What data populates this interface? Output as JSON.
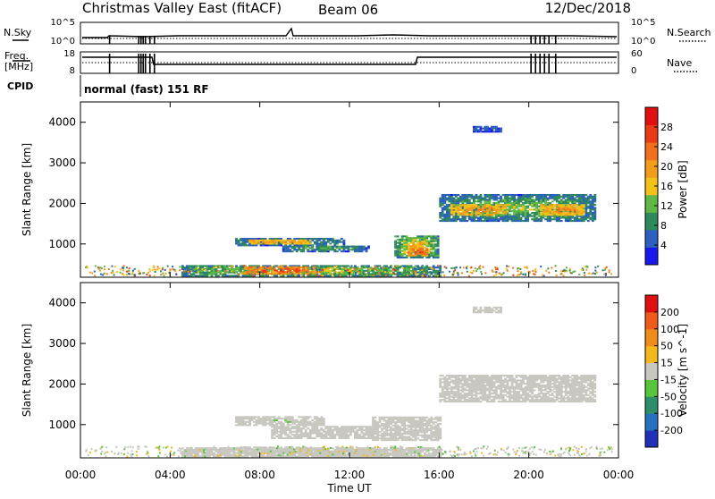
{
  "header": {
    "station": "Christmas Valley East (fitACF)",
    "beam": "Beam 06",
    "date": "12/Dec/2018"
  },
  "status_panels": {
    "nsky_label": "N.Sky",
    "nsearch_label": "N.Search",
    "freq_label_line1": "Freq.",
    "freq_label_line2": "[MHz]",
    "nave_label": "Nave",
    "cpid_label": "CPID",
    "cpid_value": "normal (fast) 151 RF",
    "noise_ticks": [
      "10^5",
      "10^0"
    ],
    "noise_ticks_right": [
      "10^5",
      "10^0"
    ],
    "freq_ticks": [
      "18",
      "8"
    ],
    "nave_ticks": [
      "60",
      "0"
    ]
  },
  "axes": {
    "ylabel": "Slant Range [km]",
    "xlabel": "Time UT",
    "y_ticks": [
      "1000",
      "2000",
      "3000",
      "4000"
    ],
    "x_ticks": [
      "00:00",
      "04:00",
      "08:00",
      "12:00",
      "16:00",
      "20:00",
      "00:00"
    ]
  },
  "colorbars": {
    "power": {
      "label": "Power [dB]",
      "ticks": [
        "4",
        "8",
        "12",
        "16",
        "20",
        "24",
        "28"
      ],
      "colors": [
        "#1818ee",
        "#2c5fbf",
        "#2e8a5c",
        "#5fb846",
        "#f2c21a",
        "#f29c1c",
        "#f0701e",
        "#e83a14",
        "#e01010"
      ]
    },
    "velocity": {
      "label": "Velocity [m s^-1]",
      "ticks": [
        "200",
        "100",
        "50",
        "15",
        "-15",
        "-50",
        "-100",
        "-200"
      ],
      "colors": [
        "#2030b8",
        "#2870c0",
        "#2e8e6a",
        "#58c43c",
        "#c8c8c0",
        "#f2b81c",
        "#f08c1c",
        "#f05a1a",
        "#e01010"
      ]
    }
  },
  "chart_data": [
    {
      "type": "heatmap",
      "name": "Power [dB]",
      "xlabel": "Time UT",
      "ylabel": "Slant Range [km]",
      "xlim": [
        0,
        24
      ],
      "ylim": [
        180,
        4500
      ],
      "clim": [
        0,
        32
      ],
      "blobs": [
        {
          "t0": 6.9,
          "t1": 11.7,
          "r0": 950,
          "r1": 1120,
          "value": 10,
          "edge": 6
        },
        {
          "t0": 7.5,
          "t1": 10.2,
          "r0": 990,
          "r1": 1080,
          "value": 22,
          "edge": 16
        },
        {
          "t0": 9.0,
          "t1": 12.8,
          "r0": 800,
          "r1": 950,
          "value": 12,
          "edge": 6
        },
        {
          "t0": 14.0,
          "t1": 15.9,
          "r0": 650,
          "r1": 1200,
          "value": 20,
          "edge": 8
        },
        {
          "t0": 14.6,
          "t1": 15.4,
          "r0": 700,
          "r1": 900,
          "value": 28,
          "edge": 20
        },
        {
          "t0": 4.5,
          "t1": 16.0,
          "r0": 200,
          "r1": 450,
          "value": 16,
          "edge": 8
        },
        {
          "t0": 7.2,
          "t1": 10.5,
          "r0": 250,
          "r1": 420,
          "value": 28,
          "edge": 20
        },
        {
          "t0": 16.0,
          "t1": 23.0,
          "r0": 1550,
          "r1": 2200,
          "value": 14,
          "edge": 6
        },
        {
          "t0": 16.5,
          "t1": 19.0,
          "r0": 1700,
          "r1": 1950,
          "value": 22,
          "edge": 16
        },
        {
          "t0": 20.5,
          "t1": 22.5,
          "r0": 1700,
          "r1": 1950,
          "value": 22,
          "edge": 16
        },
        {
          "t0": 17.5,
          "t1": 18.8,
          "r0": 3750,
          "r1": 3900,
          "value": 6,
          "edge": 4
        }
      ]
    },
    {
      "type": "heatmap",
      "name": "Velocity [m s^-1]",
      "xlabel": "Time UT",
      "ylabel": "Slant Range [km]",
      "xlim": [
        0,
        24
      ],
      "ylim": [
        180,
        4500
      ],
      "clim": [
        -250,
        250
      ],
      "blobs": [
        {
          "t0": 6.9,
          "t1": 10.8,
          "r0": 970,
          "r1": 1180,
          "value": 30,
          "edge": 0
        },
        {
          "t0": 8.5,
          "t1": 13.0,
          "r0": 650,
          "r1": 950,
          "value": 0,
          "edge": 0
        },
        {
          "t0": 13.0,
          "t1": 16.0,
          "r0": 600,
          "r1": 1200,
          "value": 0,
          "edge": 0
        },
        {
          "t0": 4.5,
          "t1": 16.0,
          "r0": 200,
          "r1": 420,
          "value": 20,
          "edge": 0
        },
        {
          "t0": 7.0,
          "t1": 10.0,
          "r0": 300,
          "r1": 450,
          "value": 0,
          "edge": 0
        },
        {
          "t0": 10.5,
          "t1": 13.5,
          "r0": 200,
          "r1": 400,
          "value": -30,
          "edge": 0
        },
        {
          "t0": 16.0,
          "t1": 23.0,
          "r0": 1550,
          "r1": 2200,
          "value": 0,
          "edge": 0
        },
        {
          "t0": 17.5,
          "t1": 18.8,
          "r0": 3750,
          "r1": 3900,
          "value": 0,
          "edge": 0
        }
      ]
    }
  ]
}
